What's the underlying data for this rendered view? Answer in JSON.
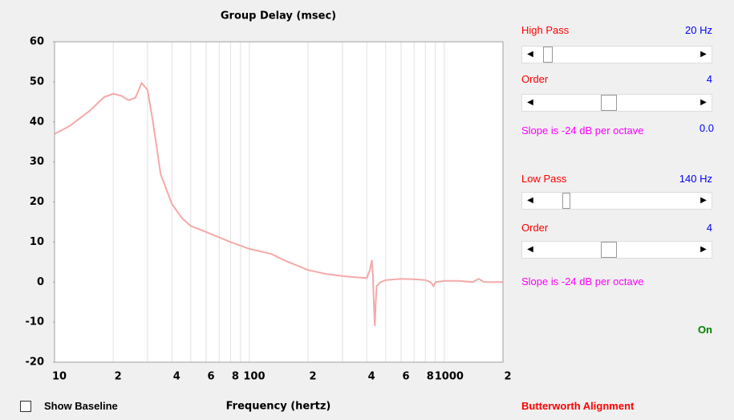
{
  "chart_data": {
    "type": "line",
    "title": "Group Delay (msec)",
    "x_label": "Frequency (hertz)",
    "x": [
      10,
      12,
      15,
      18,
      20,
      22,
      24,
      26,
      28,
      30,
      32,
      35,
      40,
      45,
      50,
      60,
      80,
      100,
      130,
      150,
      200,
      250,
      300,
      350,
      400,
      415,
      425,
      430,
      435,
      440,
      445,
      450,
      470,
      500,
      600,
      700,
      800,
      850,
      880,
      900,
      1000,
      1200,
      1400,
      1500,
      1600,
      2000
    ],
    "values": [
      37,
      39,
      42.6,
      46.2,
      47,
      46.5,
      45.4,
      46,
      49.7,
      48,
      40,
      27,
      19.5,
      16,
      14,
      12.5,
      10,
      8.3,
      7,
      5.5,
      3,
      2,
      1.5,
      1.2,
      1,
      3,
      5.5,
      2,
      -5,
      -11,
      -5,
      -1,
      0,
      0.5,
      0.8,
      0.7,
      0.5,
      0,
      -1,
      0,
      0.3,
      0.3,
      0,
      0.8,
      0,
      0
    ],
    "color": "#f4a9a8",
    "xlog": true,
    "xlim": [
      10,
      2000
    ],
    "xticks": [
      10,
      {
        "value": 20,
        "label": "2"
      },
      {
        "value": 40,
        "label": "4"
      },
      {
        "value": 60,
        "label": "6"
      },
      {
        "value": 80,
        "label": "8"
      },
      100,
      {
        "value": 200,
        "label": "2"
      },
      {
        "value": 400,
        "label": "4"
      },
      {
        "value": 600,
        "label": "6"
      },
      {
        "value": 800,
        "label": "8"
      },
      1000,
      {
        "value": 2000,
        "label": "2"
      }
    ],
    "xgrid_minor": [
      30,
      50,
      70,
      90,
      300,
      500,
      700,
      900
    ],
    "ylim": [
      -20,
      60
    ],
    "yticks": [
      -20,
      -10,
      0,
      10,
      20,
      30,
      40,
      50,
      60
    ],
    "grid": "x"
  },
  "controls": {
    "high_pass": {
      "label": "High Pass",
      "value": "20 Hz"
    },
    "high_order": {
      "label": "Order",
      "value": "4"
    },
    "high_slope": "Slope is -24 dB per octave",
    "high_extra": "0.0",
    "low_pass": {
      "label": "Low Pass",
      "value": "140 Hz"
    },
    "low_order": {
      "label": "Order",
      "value": "4"
    },
    "low_slope": "Slope is -24 dB per octave",
    "status": "On",
    "show_baseline": "Show Baseline",
    "alignment": "Butterworth Alignment"
  }
}
